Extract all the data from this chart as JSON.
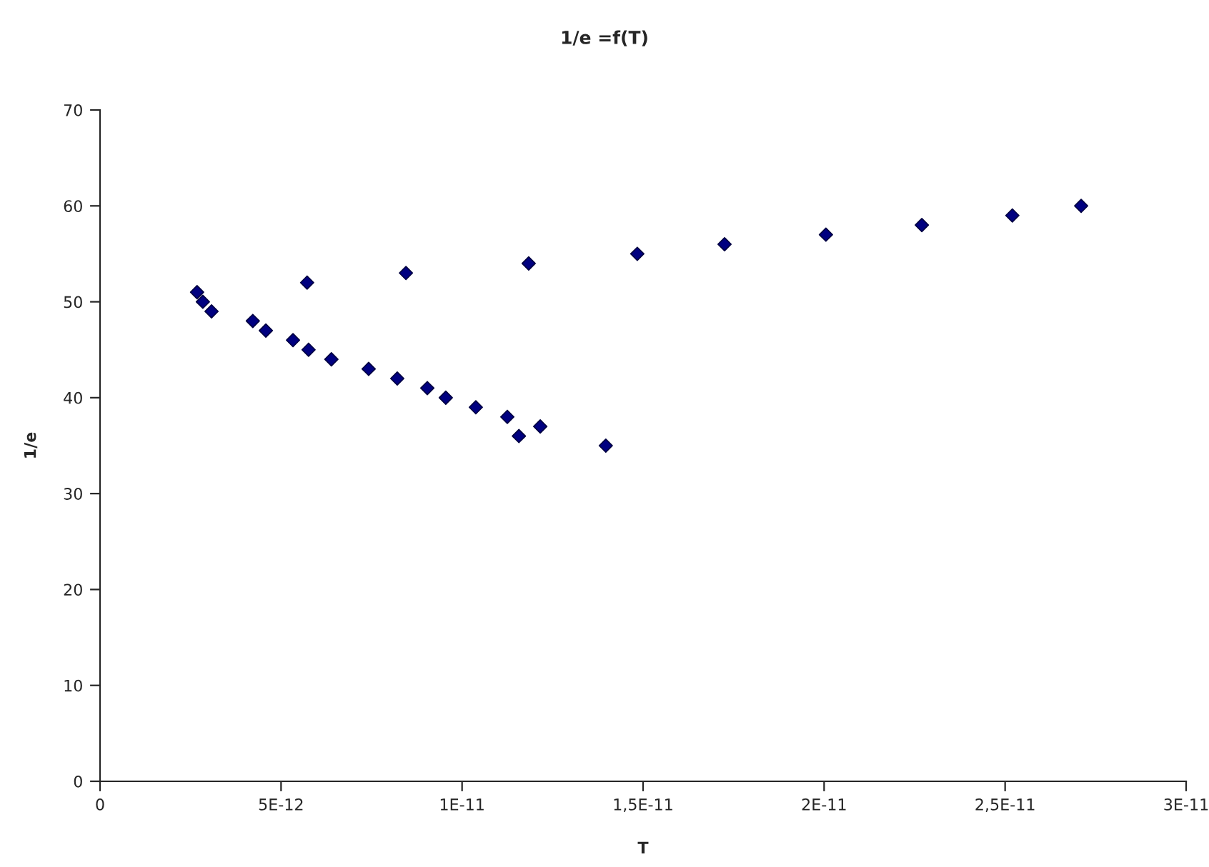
{
  "chart_data": {
    "type": "scatter",
    "title": "1/e =f(T)",
    "xlabel": "T",
    "ylabel": "1/e",
    "x": [
      2.68e-12,
      2.84e-12,
      3.08e-12,
      4.22e-12,
      4.58e-12,
      5.33e-12,
      5.76e-12,
      6.39e-12,
      7.42e-12,
      8.21e-12,
      9.04e-12,
      9.55e-12,
      1.038e-11,
      1.125e-11,
      1.157e-11,
      1.216e-11,
      1.397e-11,
      5.72e-12,
      8.45e-12,
      1.184e-11,
      1.484e-11,
      1.725e-11,
      2.005e-11,
      2.27e-11,
      2.52e-11,
      2.71e-11
    ],
    "series": [
      {
        "color": "#000080",
        "values": [
          51,
          50,
          49,
          48,
          47,
          46,
          45,
          44,
          43,
          42,
          41,
          40,
          39,
          38,
          36,
          37,
          35,
          52,
          53,
          54,
          55,
          56,
          57,
          58,
          59,
          60
        ]
      }
    ],
    "xlim": [
      0,
      3e-11
    ],
    "xticks": [
      0,
      {
        "value": 5e-12,
        "label": "5E-12"
      },
      {
        "value": 1e-11,
        "label": "1E-11"
      },
      {
        "value": 1.5e-11,
        "label": "1,5E-11"
      },
      {
        "value": 2e-11,
        "label": "2E-11"
      },
      {
        "value": 2.5e-11,
        "label": "2,5E-11"
      },
      {
        "value": 3e-11,
        "label": "3E-11"
      }
    ],
    "ylim": [
      0,
      70
    ],
    "yticks": [
      0,
      10,
      20,
      30,
      40,
      50,
      60,
      70
    ],
    "marker": "diamond",
    "grid": false,
    "legend": false
  }
}
